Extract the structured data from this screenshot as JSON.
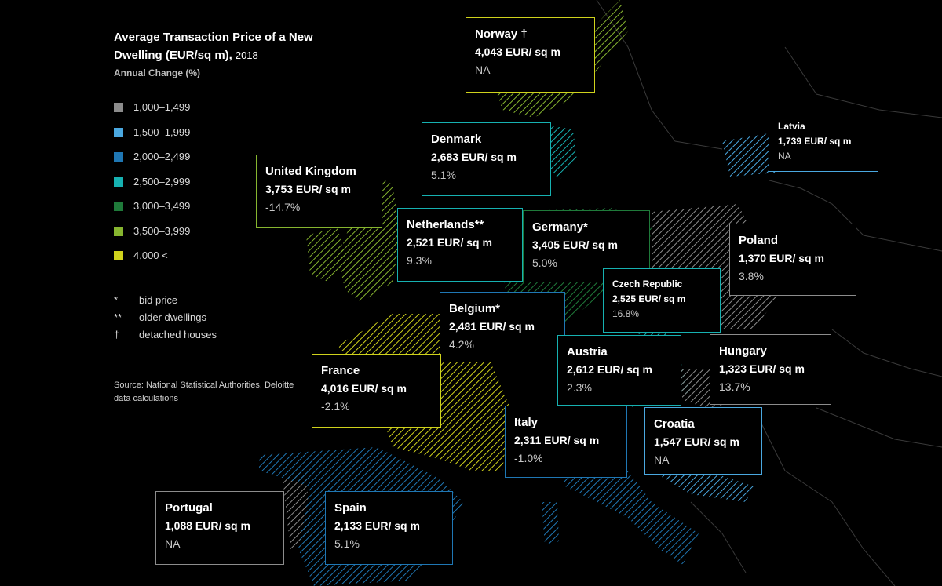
{
  "title": "Average Transaction Price of a New Dwelling (EUR/sq m),",
  "year": "2018",
  "subtitle": "Annual Change (%)",
  "legend": [
    {
      "label": "1,000–1,499",
      "color": "#8c8c8c"
    },
    {
      "label": "1,500–1,999",
      "color": "#4aa8e0"
    },
    {
      "label": "2,000–2,499",
      "color": "#1f77b4"
    },
    {
      "label": "2,500–2,999",
      "color": "#16b1b1"
    },
    {
      "label": "3,000–3,499",
      "color": "#1f7a3a"
    },
    {
      "label": "3,500–3,999",
      "color": "#86b52f"
    },
    {
      "label": "4,000  <",
      "color": "#cfd21c"
    }
  ],
  "notes": [
    {
      "symbol": "*",
      "text": "bid price"
    },
    {
      "symbol": "**",
      "text": "older dwellings"
    },
    {
      "symbol": "†",
      "text": "detached houses"
    }
  ],
  "source": "Source: National Statistical Authorities, Deloitte data calculations",
  "countries": [
    {
      "id": "norway",
      "name": "Norway †",
      "price": "4,043 EUR/   sq m",
      "change": "NA",
      "color": "#cfd21c"
    },
    {
      "id": "denmark",
      "name": "Denmark",
      "price": "2,683 EUR/   sq m",
      "change": "5.1%",
      "color": "#16b1b1"
    },
    {
      "id": "united-kingdom",
      "name": "United Kingdom",
      "price": "3,753 EUR/   sq m",
      "change": "-14.7%",
      "color": "#86b52f"
    },
    {
      "id": "netherlands",
      "name": "Netherlands**",
      "price": "2,521 EUR/   sq m",
      "change": "9.3%",
      "color": "#16b1b1"
    },
    {
      "id": "germany",
      "name": "Germany*",
      "price": "3,405 EUR/   sq m",
      "change": "5.0%",
      "color": "#1f7a3a"
    },
    {
      "id": "latvia",
      "name": "Latvia",
      "price": "1,739 EUR/   sq m",
      "change": "NA",
      "color": "#4aa8e0"
    },
    {
      "id": "poland",
      "name": "Poland",
      "price": "1,370 EUR/ sq m",
      "change": "3.8%",
      "color": "#8c8c8c"
    },
    {
      "id": "czech-republic",
      "name": "Czech Republic",
      "price": "2,525 EUR/ sq m",
      "change": "16.8%",
      "color": "#16b1b1"
    },
    {
      "id": "belgium",
      "name": "Belgium*",
      "price": "2,481 EUR/ sq m",
      "change": "4.2%",
      "color": "#1f77b4"
    },
    {
      "id": "austria",
      "name": "Austria",
      "price": "2,612 EUR/    sq m",
      "change": "2.3%",
      "color": "#16b1b1"
    },
    {
      "id": "hungary",
      "name": "Hungary",
      "price": "1,323 EUR/    sq m",
      "change": "13.7%",
      "color": "#8c8c8c"
    },
    {
      "id": "france",
      "name": "France",
      "price": "4,016 EUR/    sq m",
      "change": "-2.1%",
      "color": "#cfd21c"
    },
    {
      "id": "italy",
      "name": "Italy",
      "price": "2,311 EUR/    sq m",
      "change": "-1.0%",
      "color": "#1f77b4"
    },
    {
      "id": "croatia",
      "name": "Croatia",
      "price": "1,547 EUR/    sq m",
      "change": "NA",
      "color": "#4aa8e0"
    },
    {
      "id": "portugal",
      "name": "Portugal",
      "price": "1,088 EUR/    sq m",
      "change": "NA",
      "color": "#8c8c8c"
    },
    {
      "id": "spain",
      "name": "Spain",
      "price": "2,133 EUR/    sq m",
      "change": "5.1%",
      "color": "#1f77b4"
    }
  ]
}
